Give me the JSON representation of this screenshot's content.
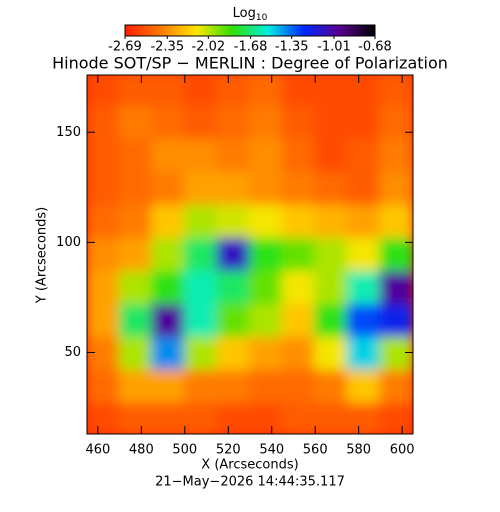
{
  "chart_data": {
    "type": "heatmap",
    "title": "Hinode SOT/SP − MERLIN : Degree of Polarization",
    "x_label": "X (Arcseconds)",
    "y_label": "Y (Arcseconds)",
    "footer": "21−May−2026 14:44:35.117",
    "colorbar_label": "Log",
    "colorbar_label_sub": "10",
    "clim": [
      -2.69,
      -0.68
    ],
    "colorbar_ticks": [
      -2.69,
      -2.35,
      -2.02,
      -1.68,
      -1.35,
      -1.01,
      -0.68
    ],
    "colormap": [
      "#ff1e00",
      "#ff7a00",
      "#ffe600",
      "#30e000",
      "#00f0e0",
      "#0028ff",
      "#5a0090",
      "#000000"
    ],
    "xlim": [
      455,
      605
    ],
    "ylim": [
      13,
      176
    ],
    "xticks": [
      460,
      480,
      500,
      520,
      540,
      560,
      580,
      600
    ],
    "yticks": [
      50,
      100,
      150
    ],
    "x": [
      462.5,
      477.5,
      492.5,
      507.5,
      522.5,
      537.5,
      552.5,
      567.5,
      582.5,
      597.5
    ],
    "y": [
      20,
      35,
      50,
      65,
      80,
      95,
      110,
      125,
      140,
      155,
      170
    ],
    "z": [
      [
        -2.55,
        -2.5,
        -2.5,
        -2.5,
        -2.55,
        -2.55,
        -2.5,
        -2.5,
        -2.5,
        -2.55
      ],
      [
        -2.45,
        -2.3,
        -2.3,
        -2.4,
        -2.4,
        -2.45,
        -2.45,
        -2.4,
        -2.2,
        -2.4
      ],
      [
        -2.4,
        -2.0,
        -1.4,
        -2.0,
        -2.2,
        -2.3,
        -2.35,
        -2.1,
        -1.5,
        -2.0
      ],
      [
        -2.3,
        -1.7,
        -1.0,
        -1.6,
        -1.9,
        -2.0,
        -2.2,
        -1.8,
        -1.3,
        -1.2
      ],
      [
        -2.3,
        -2.0,
        -1.8,
        -1.6,
        -1.7,
        -1.9,
        -2.1,
        -2.0,
        -1.6,
        -1.0
      ],
      [
        -2.35,
        -2.3,
        -2.0,
        -1.7,
        -1.1,
        -1.8,
        -1.9,
        -2.0,
        -2.1,
        -1.8
      ],
      [
        -2.45,
        -2.4,
        -2.2,
        -2.0,
        -2.05,
        -2.1,
        -2.2,
        -2.25,
        -2.3,
        -2.2
      ],
      [
        -2.5,
        -2.45,
        -2.4,
        -2.3,
        -2.3,
        -2.35,
        -2.4,
        -2.45,
        -2.5,
        -2.35
      ],
      [
        -2.5,
        -2.45,
        -2.35,
        -2.35,
        -2.4,
        -2.35,
        -2.45,
        -2.55,
        -2.5,
        -2.4
      ],
      [
        -2.5,
        -2.4,
        -2.45,
        -2.5,
        -2.45,
        -2.4,
        -2.5,
        -2.55,
        -2.55,
        -2.45
      ],
      [
        -2.55,
        -2.5,
        -2.5,
        -2.55,
        -2.5,
        -2.45,
        -2.55,
        -2.55,
        -2.55,
        -2.5
      ]
    ]
  }
}
